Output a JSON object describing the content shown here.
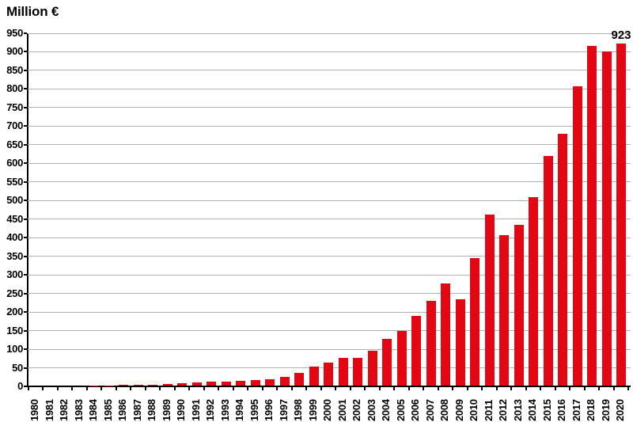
{
  "title": "Million €",
  "colors": {
    "bar": "#e30613",
    "grid": "#b2b2b2",
    "axis": "#000000",
    "text": "#000000"
  },
  "chart_data": {
    "type": "bar",
    "title": "Million €",
    "ylabel": "Million €",
    "ylim": [
      0,
      950
    ],
    "ytick_step": 50,
    "grid": true,
    "legend_position": "none",
    "bar_color": "#e30613",
    "categories": [
      "1980",
      "1981",
      "1982",
      "1983",
      "1984",
      "1985",
      "1986",
      "1987",
      "1988",
      "1989",
      "1990",
      "1991",
      "1992",
      "1993",
      "1994",
      "1995",
      "1996",
      "1997",
      "1998",
      "1999",
      "2000",
      "2001",
      "2002",
      "2003",
      "2004",
      "2005",
      "2006",
      "2007",
      "2008",
      "2009",
      "2010",
      "2011",
      "2012",
      "2013",
      "2014",
      "2015",
      "2016",
      "2017",
      "2018",
      "2019",
      "2020"
    ],
    "values": [
      0.4,
      0.7,
      1.5,
      2,
      2.5,
      3,
      3.5,
      4,
      5,
      6.5,
      8,
      10,
      12,
      13,
      15,
      17,
      20,
      25,
      37,
      53,
      63,
      76,
      76,
      96,
      127,
      150,
      190,
      231,
      276,
      235,
      345,
      463,
      407,
      434,
      509,
      620,
      679,
      808,
      915,
      900,
      923
    ],
    "annotations": [
      {
        "category": "2020",
        "text": "923"
      }
    ]
  }
}
